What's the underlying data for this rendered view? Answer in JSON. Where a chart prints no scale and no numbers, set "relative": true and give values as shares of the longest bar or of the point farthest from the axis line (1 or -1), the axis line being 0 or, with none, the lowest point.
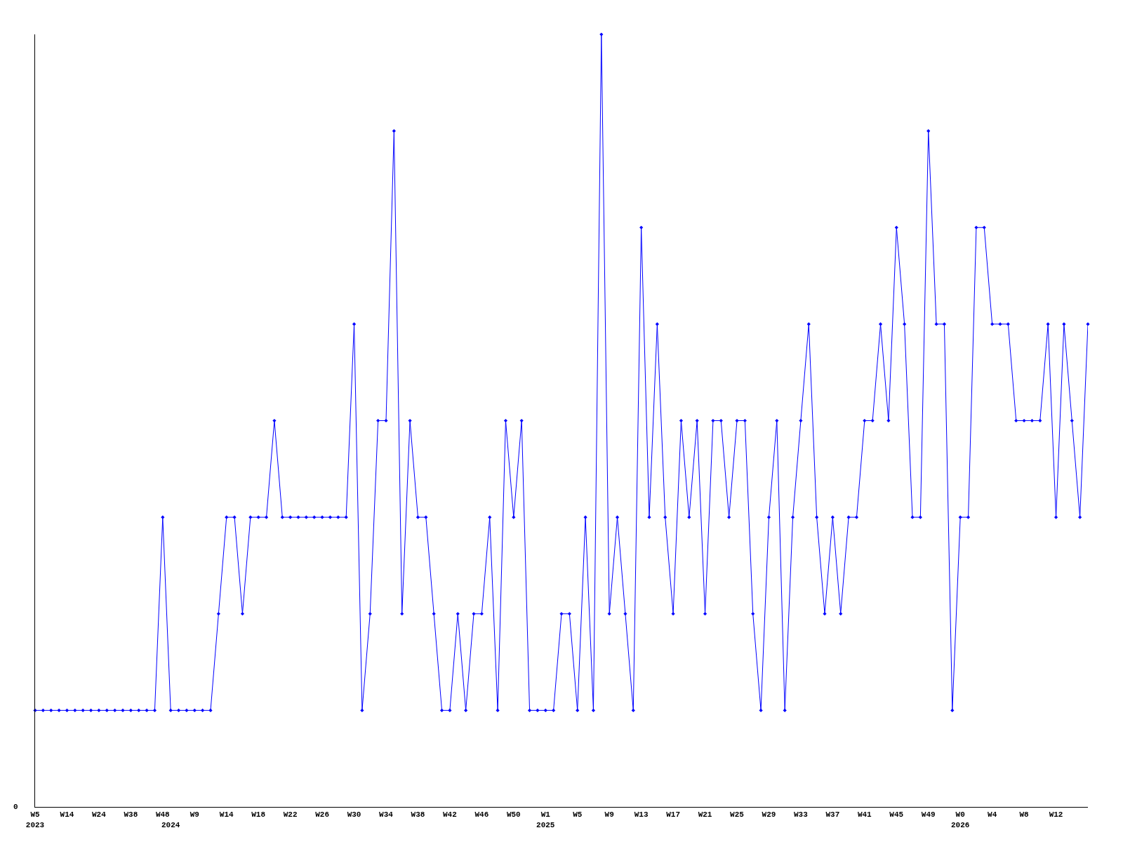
{
  "chart_data": {
    "type": "line",
    "relative": true,
    "categories": [
      "W5\n2023",
      null,
      null,
      null,
      "W14",
      null,
      null,
      null,
      "W24",
      null,
      null,
      null,
      "W38",
      null,
      null,
      null,
      "W48",
      "\n2024",
      null,
      null,
      "W9",
      null,
      null,
      null,
      "W14",
      null,
      null,
      null,
      "W18",
      null,
      null,
      null,
      "W22",
      null,
      null,
      null,
      "W26",
      null,
      null,
      null,
      "W30",
      null,
      null,
      null,
      "W34",
      null,
      null,
      null,
      "W38",
      null,
      null,
      null,
      "W42",
      null,
      null,
      null,
      "W46",
      null,
      null,
      null,
      "W50",
      null,
      null,
      null,
      "W1\n2025",
      null,
      null,
      null,
      "W5",
      null,
      null,
      null,
      "W9",
      null,
      null,
      null,
      "W13",
      null,
      null,
      null,
      "W17",
      null,
      null,
      null,
      "W21",
      null,
      null,
      null,
      "W25",
      null,
      null,
      null,
      "W29",
      null,
      null,
      null,
      "W33",
      null,
      null,
      null,
      "W37",
      null,
      null,
      null,
      "W41",
      null,
      null,
      null,
      "W45",
      null,
      null,
      null,
      "W49",
      null,
      null,
      null,
      "W0\n2026",
      null,
      null,
      null,
      "W4",
      null,
      null,
      null,
      "W8",
      null,
      null,
      null,
      "W12",
      null,
      null,
      null,
      null
    ],
    "series": [
      {
        "color": "#0000ff",
        "values": [
          0.125,
          0.125,
          0.125,
          0.125,
          0.125,
          0.125,
          0.125,
          0.125,
          0.125,
          0.125,
          0.125,
          0.125,
          0.125,
          0.125,
          0.125,
          0.125,
          0.375,
          0.125,
          0.125,
          0.125,
          0.125,
          0.125,
          0.125,
          0.25,
          0.375,
          0.375,
          0.25,
          0.375,
          0.375,
          0.375,
          0.5,
          0.375,
          0.375,
          0.375,
          0.375,
          0.375,
          0.375,
          0.375,
          0.375,
          0.375,
          0.625,
          0.125,
          0.25,
          0.5,
          0.5,
          0.875,
          0.25,
          0.5,
          0.375,
          0.375,
          0.25,
          0.125,
          0.125,
          0.25,
          0.125,
          0.25,
          0.25,
          0.375,
          0.125,
          0.5,
          0.375,
          0.5,
          0.125,
          0.125,
          0.125,
          0.125,
          0.25,
          0.25,
          0.125,
          0.375,
          0.125,
          1,
          0.25,
          0.375,
          0.25,
          0.125,
          0.75,
          0.375,
          0.625,
          0.375,
          0.25,
          0.5,
          0.375,
          0.5,
          0.25,
          0.5,
          0.5,
          0.375,
          0.5,
          0.5,
          0.25,
          0.125,
          0.375,
          0.5,
          0.125,
          0.375,
          0.5,
          0.625,
          0.375,
          0.25,
          0.375,
          0.25,
          0.375,
          0.375,
          0.5,
          0.5,
          0.625,
          0.5,
          0.75,
          0.625,
          0.375,
          0.375,
          0.875,
          0.625,
          0.625,
          0.125,
          0.375,
          0.375,
          0.75,
          0.75,
          0.625,
          0.625,
          0.625,
          0.5,
          0.5,
          0.5,
          0.5,
          0.625,
          0.375,
          0.625,
          0.5,
          0.375,
          0.625
        ]
      }
    ],
    "annotations": [
      "0"
    ],
    "marker": "diamond",
    "line_style": "solid",
    "legend": false
  }
}
